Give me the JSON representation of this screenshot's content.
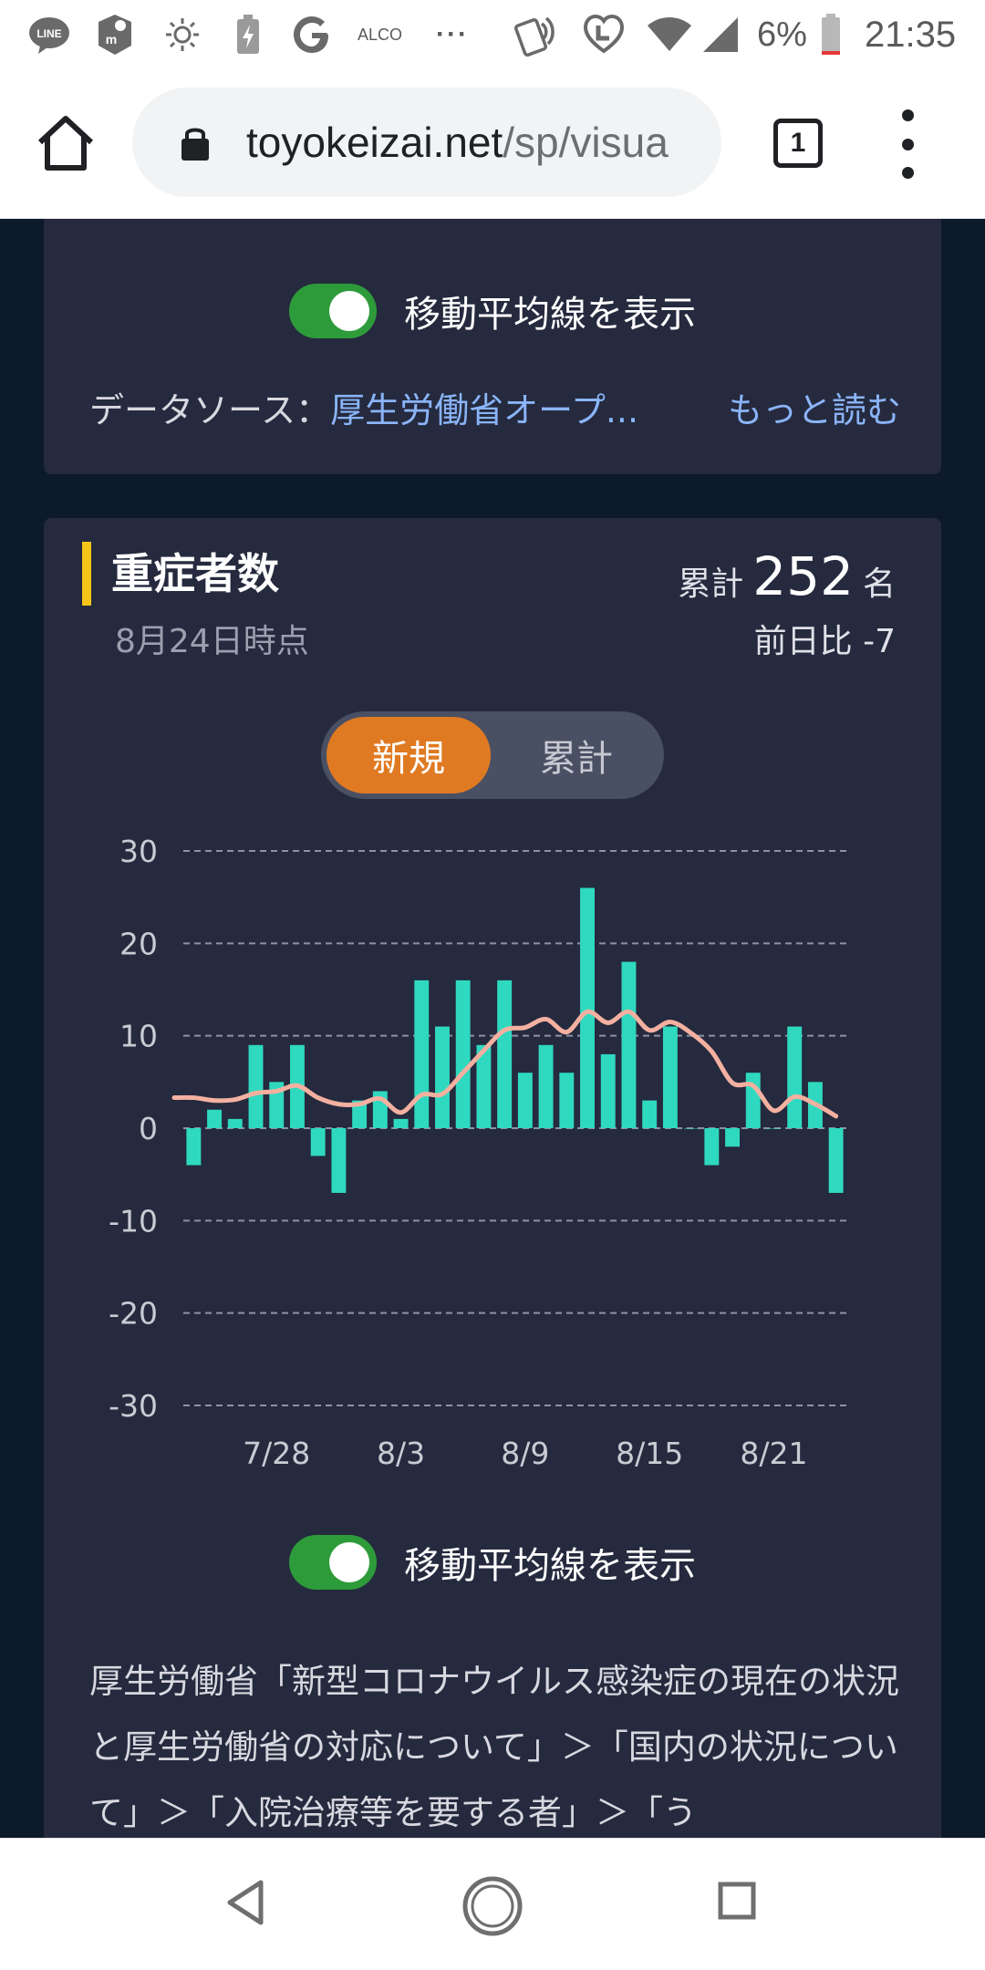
{
  "status_bar": {
    "app_icons": [
      "line-icon",
      "hangouts-icon",
      "brightness-icon",
      "battery-saver-icon",
      "google-icon"
    ],
    "alco_label": "ALCO",
    "more_label": "···",
    "battery_percent": "6%",
    "time": "21:35"
  },
  "browser": {
    "url_domain": "toyokeizai.net",
    "url_path": "/sp/visua",
    "tab_count": "1"
  },
  "previous_card": {
    "toggle_label": "移動平均線を表示",
    "toggle_on": true,
    "source_label": "データソース：",
    "source_link": "厚生労働省オープ...",
    "read_more": "もっと読む"
  },
  "severe_card": {
    "title": "重症者数",
    "date": "8月24日時点",
    "total_label": "累計",
    "total_value": "252",
    "total_unit": "名",
    "diff_text": "前日比 -7",
    "tabs": [
      {
        "label": "新規",
        "active": true
      },
      {
        "label": "累計",
        "active": false
      }
    ],
    "toggle_label": "移動平均線を表示",
    "toggle_on": true,
    "note": "厚生労働省「新型コロナウイルス感染症の現在の状況と厚生労働省の対応について」＞「国内の状況について」＞「入院治療等を要する者」＞「う"
  },
  "colors": {
    "bar": "#2fd9c0",
    "line": "#f4b0a0",
    "accent": "#e07a22",
    "title_marker": "#f5c518",
    "toggle_on": "#2e9b3a"
  },
  "chart_data": {
    "type": "bar",
    "title": "重症者数",
    "x_tick_labels": [
      "7/28",
      "8/3",
      "8/9",
      "8/15",
      "8/21"
    ],
    "y_tick_labels": [
      "30",
      "20",
      "10",
      "0",
      "-10",
      "-20",
      "-30"
    ],
    "ylim": [
      -30,
      30
    ],
    "grid": true,
    "dates": [
      "7/24",
      "7/25",
      "7/26",
      "7/27",
      "7/28",
      "7/29",
      "7/30",
      "7/31",
      "8/1",
      "8/2",
      "8/3",
      "8/4",
      "8/5",
      "8/6",
      "8/7",
      "8/8",
      "8/9",
      "8/10",
      "8/11",
      "8/12",
      "8/13",
      "8/14",
      "8/15",
      "8/16",
      "8/17",
      "8/18",
      "8/19",
      "8/20",
      "8/21",
      "8/22",
      "8/23",
      "8/24"
    ],
    "series": [
      {
        "type": "bar",
        "values": [
          -4,
          2,
          1,
          9,
          5,
          9,
          -3,
          -7,
          3,
          4,
          1,
          16,
          11,
          16,
          9,
          16,
          6,
          9,
          6,
          26,
          8,
          18,
          3,
          11,
          0,
          -4,
          -2,
          6,
          0,
          11,
          5,
          -7
        ]
      },
      {
        "type": "line",
        "values": [
          3.3,
          3.0,
          3.1,
          3.8,
          4.0,
          4.6,
          3.3,
          2.6,
          2.6,
          3.2,
          1.7,
          3.6,
          3.7,
          6.0,
          8.4,
          10.6,
          10.9,
          11.8,
          10.4,
          12.6,
          11.4,
          12.6,
          10.6,
          11.5,
          10.3,
          8.3,
          4.9,
          4.6,
          1.9,
          3.4,
          2.6,
          1.3
        ]
      }
    ]
  }
}
